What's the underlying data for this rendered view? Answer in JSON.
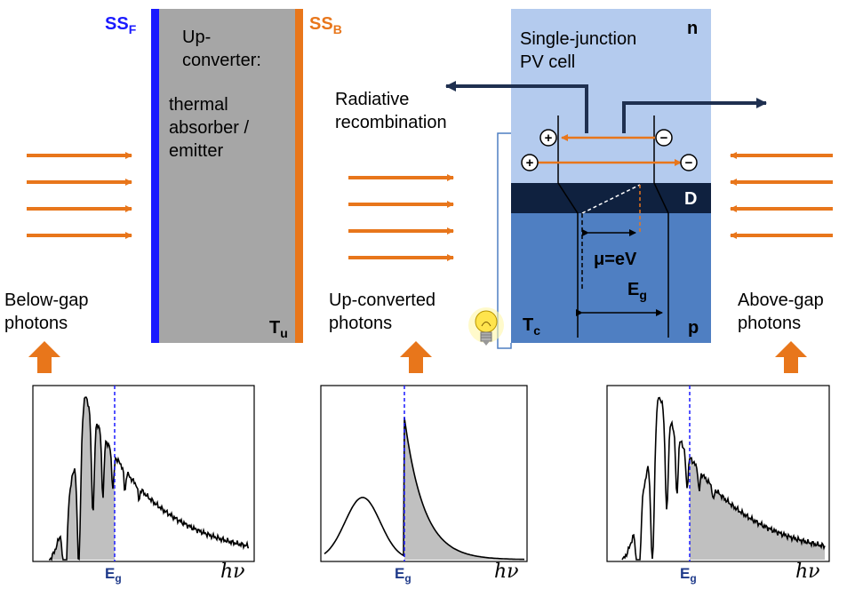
{
  "colors": {
    "upconverter_fill": "#a6a6a6",
    "front_surface": "#1a1aff",
    "back_surface": "#e8761b",
    "photon_arrow": "#e8761b",
    "cell_n": "#b4cbee",
    "cell_p": "#4f7fc2",
    "depletion": "#0f213f",
    "recomb_arrow": "#1f3050",
    "spectrum_fill": "#c0c0c0",
    "eg_line": "#1a1aff"
  },
  "labels": {
    "ssf_main": "SS",
    "ssf_sub": "F",
    "ssb_main": "SS",
    "ssb_sub": "B",
    "upconverter_line1": "Up-",
    "upconverter_line2": "converter:",
    "absorber_line1": "thermal",
    "absorber_line2": "absorber /",
    "absorber_line3": "emitter",
    "tu_main": "T",
    "tu_sub": "u",
    "cell_line1": "Single-junction",
    "cell_line2": "PV cell",
    "n_label": "n",
    "p_label": "p",
    "d_label": "D",
    "radiative_line1": "Radiative",
    "radiative_line2": "recombination",
    "mu": "μ=eV",
    "eg_cell_main": "E",
    "eg_cell_sub": "g",
    "tc_main": "T",
    "tc_sub": "c",
    "below_gap_line1": "Below-gap",
    "below_gap_line2": "photons",
    "upconverted_line1": "Up-converted",
    "upconverted_line2": "photons",
    "above_gap_line1": "Above-gap",
    "above_gap_line2": "photons",
    "hole_symbol": "+",
    "electron_symbol": "−"
  },
  "spectra": [
    {
      "eg_main": "E",
      "eg_sub": "g",
      "axis_label": "hν"
    },
    {
      "eg_main": "E",
      "eg_sub": "g",
      "axis_label": "hν"
    },
    {
      "eg_main": "E",
      "eg_sub": "g",
      "axis_label": "hν"
    }
  ]
}
